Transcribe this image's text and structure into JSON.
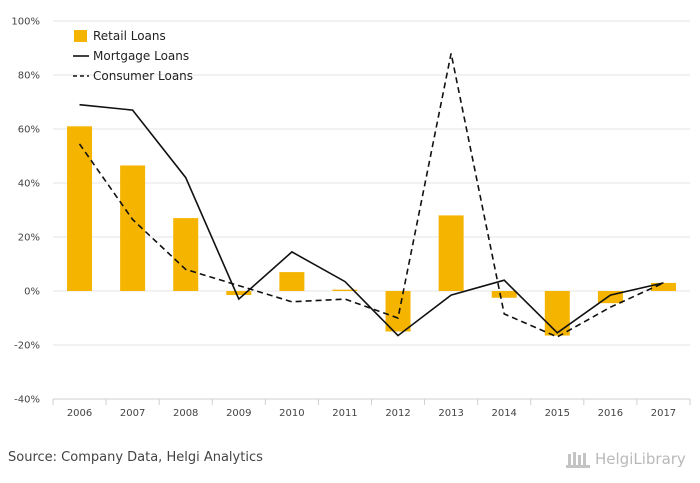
{
  "chart_data": {
    "type": "bar",
    "title": "",
    "xlabel": "",
    "ylabel": "",
    "categories": [
      "2006",
      "2007",
      "2008",
      "2009",
      "2010",
      "2011",
      "2012",
      "2013",
      "2014",
      "2015",
      "2016",
      "2017"
    ],
    "ylim": [
      -40,
      100
    ],
    "yticks": [
      -40,
      -20,
      0,
      20,
      40,
      60,
      80,
      100
    ],
    "ytick_labels": [
      "-40%",
      "-20%",
      "0%",
      "20%",
      "40%",
      "60%",
      "80%",
      "100%"
    ],
    "grid": true,
    "legend_position": "top-left",
    "series": [
      {
        "name": "Retail Loans",
        "kind": "bar",
        "color": "#F5B400",
        "values": [
          61,
          46.5,
          27,
          -1.5,
          7,
          0.5,
          -15,
          28,
          -2.5,
          -16.5,
          -4.5,
          3
        ]
      },
      {
        "name": "Mortgage Loans",
        "kind": "line",
        "style": "solid",
        "color": "#111111",
        "values": [
          69,
          67,
          42,
          -3,
          14.5,
          3.5,
          -16.5,
          -1.5,
          4,
          -15.5,
          -1.5,
          3
        ]
      },
      {
        "name": "Consumer Loans",
        "kind": "line",
        "style": "dashed",
        "color": "#111111",
        "values": [
          54.5,
          26.5,
          8,
          2,
          -4,
          -3,
          -10,
          88,
          -8.5,
          -17,
          -6,
          3
        ]
      }
    ]
  },
  "footer": {
    "source": "Source: Company Data, Helgi Analytics",
    "brand": "HelgiLibrary"
  }
}
